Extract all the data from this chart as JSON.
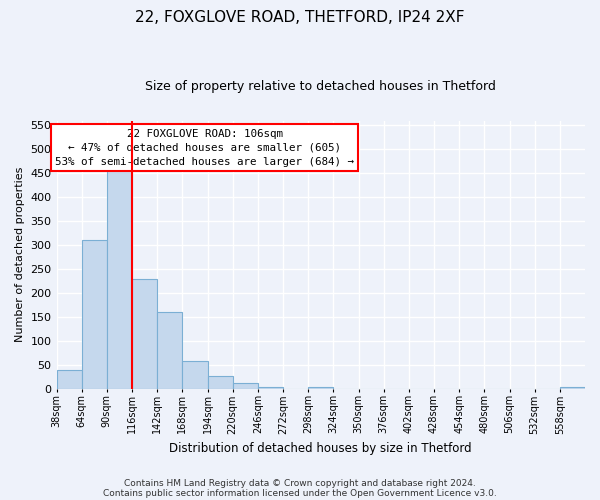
{
  "title_line1": "22, FOXGLOVE ROAD, THETFORD, IP24 2XF",
  "title_line2": "Size of property relative to detached houses in Thetford",
  "xlabel": "Distribution of detached houses by size in Thetford",
  "ylabel": "Number of detached properties",
  "bar_labels": [
    "38sqm",
    "64sqm",
    "90sqm",
    "116sqm",
    "142sqm",
    "168sqm",
    "194sqm",
    "220sqm",
    "246sqm",
    "272sqm",
    "298sqm",
    "324sqm",
    "350sqm",
    "376sqm",
    "402sqm",
    "428sqm",
    "454sqm",
    "480sqm",
    "506sqm",
    "532sqm",
    "558sqm"
  ],
  "bar_values": [
    38,
    310,
    457,
    228,
    160,
    57,
    26,
    12,
    3,
    0,
    3,
    0,
    0,
    0,
    0,
    0,
    0,
    0,
    0,
    0,
    3
  ],
  "bar_color": "#c5d8ed",
  "bar_edge_color": "#7bafd4",
  "vline_x": 3.0,
  "vline_color": "red",
  "annotation_title": "22 FOXGLOVE ROAD: 106sqm",
  "annotation_line1": "← 47% of detached houses are smaller (605)",
  "annotation_line2": "53% of semi-detached houses are larger (684) →",
  "annotation_box_color": "white",
  "annotation_box_edge_color": "red",
  "ylim": [
    0,
    560
  ],
  "yticks": [
    0,
    50,
    100,
    150,
    200,
    250,
    300,
    350,
    400,
    450,
    500,
    550
  ],
  "footer_line1": "Contains HM Land Registry data © Crown copyright and database right 2024.",
  "footer_line2": "Contains public sector information licensed under the Open Government Licence v3.0.",
  "background_color": "#eef2fa",
  "grid_color": "white"
}
